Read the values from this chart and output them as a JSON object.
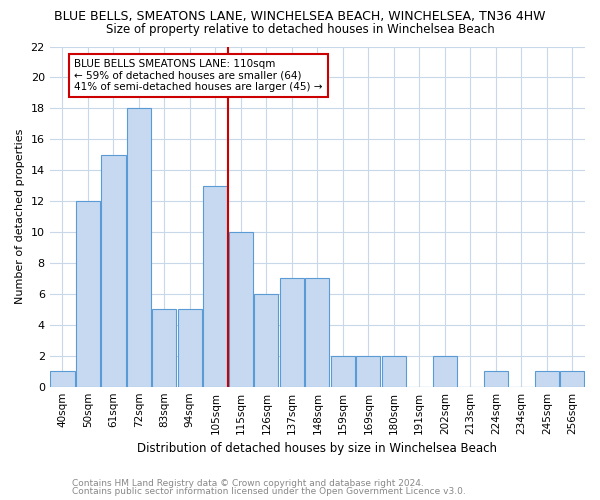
{
  "title": "BLUE BELLS, SMEATONS LANE, WINCHELSEA BEACH, WINCHELSEA, TN36 4HW",
  "subtitle": "Size of property relative to detached houses in Winchelsea Beach",
  "xlabel": "Distribution of detached houses by size in Winchelsea Beach",
  "ylabel": "Number of detached properties",
  "footnote1": "Contains HM Land Registry data © Crown copyright and database right 2024.",
  "footnote2": "Contains public sector information licensed under the Open Government Licence v3.0.",
  "categories": [
    "40sqm",
    "50sqm",
    "61sqm",
    "72sqm",
    "83sqm",
    "94sqm",
    "105sqm",
    "115sqm",
    "126sqm",
    "137sqm",
    "148sqm",
    "159sqm",
    "169sqm",
    "180sqm",
    "191sqm",
    "202sqm",
    "213sqm",
    "224sqm",
    "234sqm",
    "245sqm",
    "256sqm"
  ],
  "values": [
    1,
    12,
    15,
    18,
    5,
    5,
    13,
    10,
    6,
    7,
    7,
    2,
    2,
    2,
    0,
    2,
    0,
    1,
    0,
    1,
    1
  ],
  "bar_color": "#c6d9f0",
  "bar_edge_color": "#5b9bd5",
  "marker_line_color": "#cc0000",
  "annotation_line1": "BLUE BELLS SMEATONS LANE: 110sqm",
  "annotation_line2": "← 59% of detached houses are smaller (64)",
  "annotation_line3": "41% of semi-detached houses are larger (45) →",
  "annotation_box_color": "#ffffff",
  "annotation_box_edge": "#cc0000",
  "ylim": [
    0,
    22
  ],
  "yticks": [
    0,
    2,
    4,
    6,
    8,
    10,
    12,
    14,
    16,
    18,
    20,
    22
  ],
  "bg_color": "#ffffff",
  "grid_color": "#c8d8e8"
}
